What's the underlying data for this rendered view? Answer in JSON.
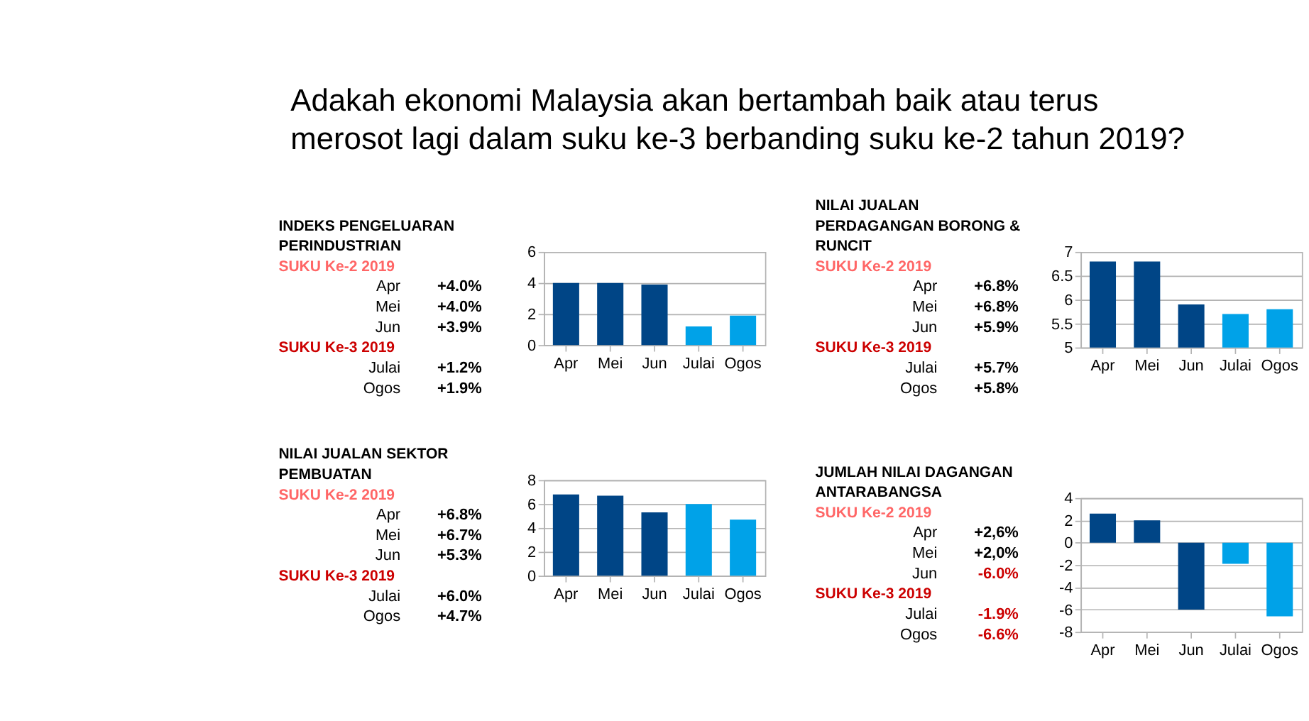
{
  "chart_data": [
    {
      "type": "other",
      "title": "Adakah ekonomi Malaysia akan bertambah baik atau terus merosot lagi dalam suku ke-3 berbanding suku ke-2 tahun 2019?"
    },
    {
      "type": "bar",
      "title": "INDEKS PENGELUARAN PERINDUSTRIAN",
      "categories": [
        "Apr",
        "Mei",
        "Jun",
        "Julai",
        "Ogos"
      ],
      "values": [
        4.0,
        4.0,
        3.9,
        1.2,
        1.9
      ],
      "colors": [
        "#004586",
        "#004586",
        "#004586",
        "#00a2e8",
        "#00a2e8"
      ],
      "annotations": [
        "SUKU Ke-2 2019",
        "SUKU Ke-3 2019",
        "+4.0%",
        "+4.0%",
        "+3.9%",
        "+1.2%",
        "+1.9%"
      ],
      "ylim": [
        0,
        6
      ],
      "yticks": [
        0,
        2,
        4,
        6
      ],
      "grid": "y"
    },
    {
      "type": "bar",
      "title": "NILAI JUALAN SEKTOR PEMBUATAN",
      "categories": [
        "Apr",
        "Mei",
        "Jun",
        "Julai",
        "Ogos"
      ],
      "values": [
        6.8,
        6.7,
        5.3,
        6.0,
        4.7
      ],
      "colors": [
        "#004586",
        "#004586",
        "#004586",
        "#00a2e8",
        "#00a2e8"
      ],
      "annotations": [
        "SUKU Ke-2 2019",
        "SUKU Ke-3 2019",
        "+6.8%",
        "+6.7%",
        "+5.3%",
        "+6.0%",
        "+4.7%"
      ],
      "ylim": [
        0,
        8
      ],
      "yticks": [
        0,
        2,
        4,
        6,
        8
      ],
      "grid": "y"
    },
    {
      "type": "bar",
      "title": "NILAI JUALAN PERDAGANGAN BORONG & RUNCIT",
      "categories": [
        "Apr",
        "Mei",
        "Jun",
        "Julai",
        "Ogos"
      ],
      "values": [
        6.8,
        6.8,
        5.9,
        5.7,
        5.8
      ],
      "colors": [
        "#004586",
        "#004586",
        "#004586",
        "#00a2e8",
        "#00a2e8"
      ],
      "annotations": [
        "SUKU Ke-2 2019",
        "SUKU Ke-3 2019",
        "+6.8%",
        "+6.8%",
        "+5.9%",
        "+5.7%",
        "+5.8%"
      ],
      "ylim": [
        5,
        7
      ],
      "yticks": [
        5,
        5.5,
        6,
        6.5,
        7
      ],
      "grid": "y"
    },
    {
      "type": "bar",
      "title": "JUMLAH NILAI DAGANGAN ANTARABANGSA",
      "categories": [
        "Apr",
        "Mei",
        "Jun",
        "Julai",
        "Ogos"
      ],
      "values": [
        2.6,
        2.0,
        -6.0,
        -1.9,
        -6.6
      ],
      "colors": [
        "#004586",
        "#004586",
        "#004586",
        "#00a2e8",
        "#00a2e8"
      ],
      "annotations": [
        "SUKU Ke-2 2019",
        "SUKU Ke-3 2019",
        "+2,6%",
        "+2,0%",
        "-6.0%",
        "-1.9%",
        "-6.6%"
      ],
      "ylim": [
        -8,
        4
      ],
      "yticks": [
        -8,
        -6,
        -4,
        -2,
        0,
        2,
        4
      ],
      "grid": "y"
    }
  ]
}
